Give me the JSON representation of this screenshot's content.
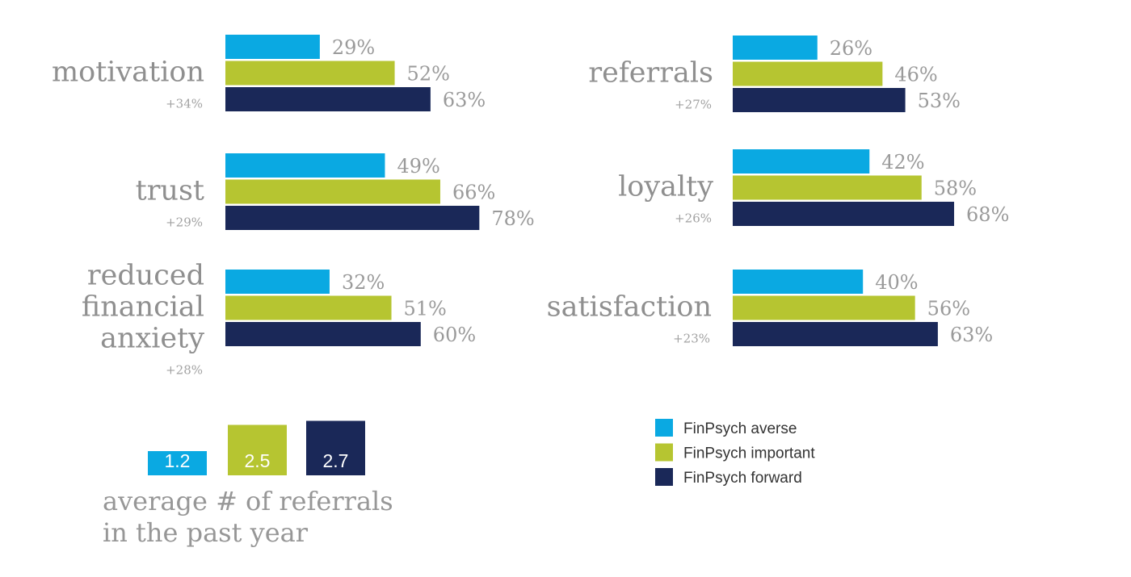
{
  "colors": {
    "averse": "#0aa9e2",
    "important": "#b6c531",
    "forward": "#1a2858"
  },
  "chart_data": [
    {
      "type": "bar",
      "orientation": "horizontal",
      "grid": false,
      "xlim": [
        0,
        100
      ],
      "value_suffix": "%",
      "series_names": [
        "FinPsych averse",
        "FinPsych important",
        "FinPsych forward"
      ],
      "groups": [
        {
          "label": [
            "motivation"
          ],
          "diff": "+34%",
          "values": [
            29,
            52,
            63
          ]
        },
        {
          "label": [
            "trust"
          ],
          "diff": "+29%",
          "values": [
            49,
            66,
            78
          ]
        },
        {
          "label": [
            "reduced",
            "financial",
            "anxiety"
          ],
          "diff": "+28%",
          "values": [
            32,
            51,
            60
          ]
        },
        {
          "label": [
            "referrals"
          ],
          "diff": "+27%",
          "values": [
            26,
            46,
            53
          ]
        },
        {
          "label": [
            "loyalty"
          ],
          "diff": "+26%",
          "values": [
            42,
            58,
            68
          ]
        },
        {
          "label": [
            "satisfaction"
          ],
          "diff": "+23%",
          "values": [
            40,
            56,
            63
          ]
        }
      ]
    },
    {
      "type": "bar",
      "orientation": "vertical",
      "grid": false,
      "title": [
        "average # of referrals",
        "in the past year"
      ],
      "ylim": [
        0,
        3
      ],
      "series": [
        {
          "name": "FinPsych averse",
          "value": 1.2
        },
        {
          "name": "FinPsych important",
          "value": 2.5
        },
        {
          "name": "FinPsych forward",
          "value": 2.7
        }
      ]
    }
  ],
  "legend": {
    "placement": "bottom-right",
    "items": [
      {
        "label": "FinPsych averse",
        "color": "#0aa9e2"
      },
      {
        "label": "FinPsych important",
        "color": "#b6c531"
      },
      {
        "label": "FinPsych forward",
        "color": "#1a2858"
      }
    ]
  }
}
